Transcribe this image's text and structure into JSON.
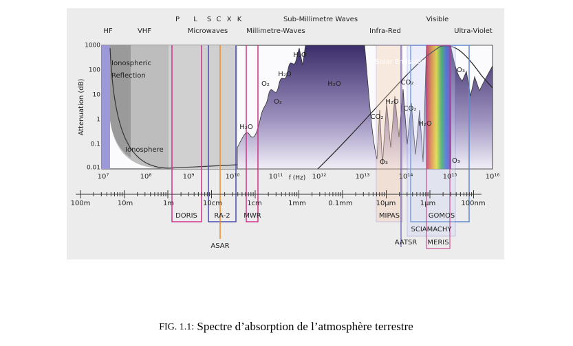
{
  "figure": {
    "y_axis_label": "Attenuation (dB)",
    "y_ticks": [
      "1000",
      "100",
      "10",
      "1",
      "0.1",
      "0.01"
    ],
    "frequency_ticks": [
      "10⁷",
      "10⁸",
      "10⁹",
      "10¹⁰",
      "10¹¹",
      "10¹²",
      "10¹³",
      "10¹⁴",
      "10¹⁵",
      "10¹⁶"
    ],
    "frequency_unit": "f (Hz)",
    "wavelength_ticks": [
      "100m",
      "10m",
      "1m",
      "10cm",
      "1cm",
      "1mm",
      "0.1mm",
      "10µm",
      "1µm",
      "100nm"
    ],
    "bands": [
      "HF",
      "VHF",
      "P",
      "L",
      "S",
      "C",
      "X",
      "K",
      "Microwaves",
      "Millimetre-Waves",
      "Sub-Millimetre Waves",
      "Infra-Red",
      "Visible",
      "Ultra-Violet"
    ],
    "regions": [
      "Ionospheric",
      "Reflection",
      "Ionosphere",
      "Solar Emission"
    ],
    "molecules": [
      "H₂O",
      "O₂",
      "H₂O",
      "O₂",
      "H₂O",
      "H₂O",
      "CO₂",
      "H₂O",
      "CO₂",
      "CO₂",
      "H₂O",
      "O₃",
      "O₃",
      "O₃"
    ],
    "instruments": [
      "DORIS",
      "RA-2",
      "MWR",
      "ASAR",
      "MIPAS",
      "GOMOS",
      "SCIAMACHY",
      "AATSR",
      "MERIS"
    ]
  },
  "caption": {
    "label": "FIG. 1.1:",
    "text": "Spectre d’absorption de l’atmosphère terrestre"
  }
}
